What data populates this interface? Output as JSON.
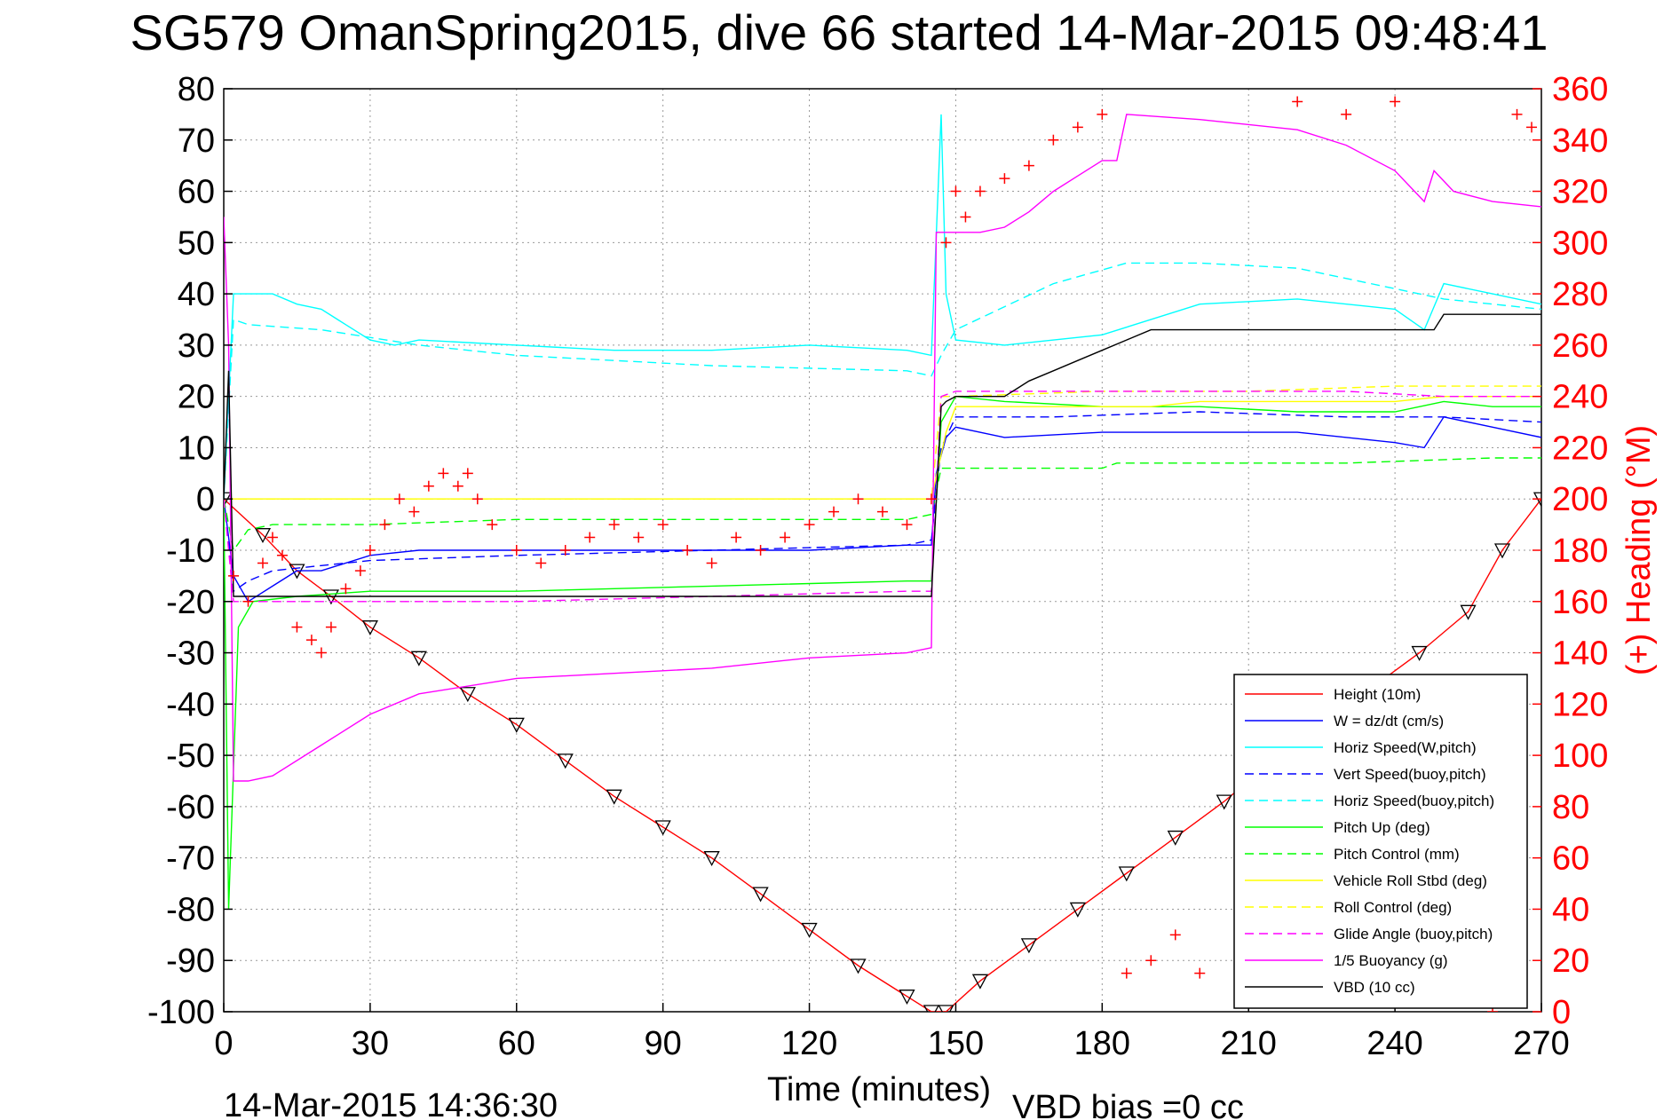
{
  "title": "SG579 OmanSpring2015, dive 66 started 14-Mar-2015 09:48:41",
  "footer_date": "14-Mar-2015 14:36:30",
  "footer_vbd": "VBD bias =0 cc",
  "colors": {
    "height": "#ff0000",
    "w": "#0000ff",
    "horiz_w": "#00ffff",
    "vert_buoy": "#0000ff",
    "horiz_buoy": "#00ffff",
    "pitch": "#00ff00",
    "pitch_ctrl": "#00ff00",
    "roll": "#ffff00",
    "roll_ctrl": "#ffff00",
    "glide": "#ff00ff",
    "buoy": "#ff00ff",
    "vbd": "#000000",
    "heading": "#ff0000",
    "grid": "#999999"
  },
  "chart_data": {
    "type": "line",
    "title": "SG579 OmanSpring2015, dive 66 started 14-Mar-2015 09:48:41",
    "xlabel": "Time (minutes)",
    "ylabel_right": "(+) Heading (°M)",
    "xlim": [
      0,
      270
    ],
    "ylim": [
      -100,
      80
    ],
    "y2lim": [
      0,
      360
    ],
    "xticks": [
      0,
      30,
      60,
      90,
      120,
      150,
      180,
      210,
      240,
      270
    ],
    "yticks": [
      80,
      70,
      60,
      50,
      40,
      30,
      20,
      10,
      0,
      -10,
      -20,
      -30,
      -40,
      -50,
      -60,
      -70,
      -80,
      -90,
      -100
    ],
    "y2ticks": [
      360,
      340,
      320,
      300,
      280,
      260,
      240,
      220,
      200,
      180,
      160,
      140,
      120,
      100,
      80,
      60,
      40,
      20,
      0
    ],
    "grid": true,
    "legend_position": "bottom-right",
    "series": [
      {
        "key": "height",
        "name": "Height (10m)",
        "style": "solid",
        "marker": "triangle",
        "x": [
          0,
          8,
          15,
          22,
          30,
          40,
          50,
          60,
          70,
          80,
          90,
          100,
          110,
          120,
          130,
          140,
          145,
          148,
          155,
          165,
          175,
          185,
          195,
          205,
          215,
          225,
          235,
          245,
          255,
          262,
          270
        ],
        "y": [
          0,
          -7,
          -14,
          -19,
          -25,
          -31,
          -38,
          -44,
          -51,
          -58,
          -64,
          -70,
          -77,
          -84,
          -91,
          -97,
          -100,
          -100,
          -94,
          -87,
          -80,
          -73,
          -66,
          -59,
          -51,
          -44,
          -37,
          -30,
          -22,
          -10,
          0
        ]
      },
      {
        "key": "w",
        "name": "W = dz/dt (cm/s)",
        "style": "solid",
        "x": [
          0,
          2,
          5,
          10,
          15,
          20,
          30,
          40,
          60,
          80,
          100,
          120,
          140,
          145,
          146,
          148,
          150,
          160,
          180,
          200,
          220,
          240,
          246,
          250,
          260,
          270
        ],
        "y": [
          0,
          -15,
          -20,
          -17,
          -14,
          -14,
          -11,
          -10,
          -10,
          -10,
          -10,
          -10,
          -9,
          -9,
          5,
          12,
          14,
          12,
          13,
          13,
          13,
          11,
          10,
          16,
          14,
          12
        ]
      },
      {
        "key": "horiz_w",
        "name": "Horiz Speed(W,pitch)",
        "style": "solid",
        "x": [
          0,
          2,
          5,
          10,
          15,
          20,
          25,
          30,
          35,
          40,
          60,
          80,
          100,
          120,
          140,
          145,
          147,
          148,
          150,
          160,
          180,
          200,
          220,
          240,
          246,
          250,
          260,
          270
        ],
        "y": [
          0,
          40,
          40,
          40,
          38,
          37,
          34,
          31,
          30,
          31,
          30,
          29,
          29,
          30,
          29,
          28,
          75,
          40,
          31,
          30,
          32,
          38,
          39,
          37,
          33,
          42,
          40,
          38
        ]
      },
      {
        "key": "vert_buoy",
        "name": "Vert Speed(buoy,pitch)",
        "style": "dashed",
        "x": [
          0,
          2,
          5,
          10,
          20,
          30,
          60,
          100,
          140,
          145,
          147,
          150,
          170,
          200,
          230,
          250,
          270
        ],
        "y": [
          0,
          -18,
          -16,
          -14,
          -13,
          -12,
          -11,
          -10,
          -9,
          -8,
          10,
          16,
          16,
          17,
          16,
          16,
          15
        ]
      },
      {
        "key": "horiz_buoy",
        "name": "Horiz Speed(buoy,pitch)",
        "style": "dashed",
        "x": [
          0,
          2,
          5,
          20,
          40,
          60,
          100,
          140,
          145,
          147,
          150,
          170,
          185,
          200,
          220,
          240,
          250,
          260,
          270
        ],
        "y": [
          0,
          35,
          34,
          33,
          30,
          28,
          26,
          25,
          24,
          28,
          33,
          42,
          46,
          46,
          45,
          41,
          39,
          38,
          37
        ]
      },
      {
        "key": "pitch",
        "name": "Pitch Up (deg)",
        "style": "solid",
        "x": [
          0,
          1,
          3,
          6,
          15,
          30,
          60,
          100,
          140,
          145,
          147,
          150,
          160,
          180,
          200,
          220,
          240,
          250,
          260,
          270
        ],
        "y": [
          0,
          -80,
          -25,
          -20,
          -19,
          -18,
          -18,
          -17,
          -16,
          -16,
          15,
          20,
          19,
          18,
          18,
          17,
          17,
          19,
          18,
          18
        ]
      },
      {
        "key": "pitch_ctrl",
        "name": "Pitch Control (mm)",
        "style": "dashed",
        "x": [
          0,
          2,
          5,
          10,
          30,
          60,
          100,
          140,
          145,
          147,
          150,
          160,
          180,
          183,
          200,
          230,
          260,
          270
        ],
        "y": [
          0,
          -10,
          -6,
          -5,
          -5,
          -4,
          -4,
          -4,
          -3,
          6,
          6,
          6,
          6,
          7,
          7,
          7,
          8,
          8
        ]
      },
      {
        "key": "roll",
        "name": "Vehicle Roll Stbd (deg)",
        "style": "solid",
        "x": [
          0,
          10,
          20,
          30,
          40,
          50,
          60,
          70,
          80,
          90,
          100,
          110,
          120,
          130,
          140,
          145,
          148,
          150,
          160,
          170,
          180,
          190,
          200,
          210,
          220,
          230,
          240,
          250,
          260,
          270
        ],
        "y": [
          0,
          0,
          0,
          0,
          0,
          0,
          0,
          0,
          0,
          0,
          0,
          0,
          0,
          0,
          0,
          0,
          13,
          18,
          18,
          18,
          18,
          18,
          19,
          19,
          19,
          19,
          19,
          20,
          20,
          20
        ]
      },
      {
        "key": "roll_ctrl",
        "name": "Roll Control (deg)",
        "style": "dashed",
        "x": [
          0,
          20,
          40,
          60,
          80,
          100,
          120,
          140,
          145,
          147,
          150,
          180,
          210,
          240,
          270
        ],
        "y": [
          0,
          0,
          0,
          0,
          0,
          0,
          0,
          0,
          0,
          20,
          20,
          21,
          21,
          22,
          22
        ]
      },
      {
        "key": "glide",
        "name": "Glide Angle (buoy,pitch)",
        "style": "dashed",
        "x": [
          0,
          2,
          6,
          15,
          30,
          60,
          100,
          140,
          145,
          147,
          150,
          170,
          200,
          230,
          250,
          270
        ],
        "y": [
          0,
          -20,
          -20,
          -20,
          -20,
          -20,
          -19,
          -18,
          -18,
          20,
          21,
          21,
          21,
          21,
          20,
          20
        ]
      },
      {
        "key": "buoy",
        "name": "1/5 Buoyancy (g)",
        "style": "solid",
        "x": [
          0,
          1,
          2,
          5,
          10,
          20,
          30,
          40,
          60,
          80,
          100,
          120,
          140,
          145,
          146,
          150,
          155,
          160,
          165,
          170,
          175,
          180,
          183,
          185,
          200,
          220,
          230,
          240,
          246,
          248,
          252,
          260,
          270
        ],
        "y": [
          55,
          30,
          -55,
          -55,
          -54,
          -48,
          -42,
          -38,
          -35,
          -34,
          -33,
          -31,
          -30,
          -29,
          52,
          52,
          52,
          53,
          56,
          60,
          63,
          66,
          66,
          75,
          74,
          72,
          69,
          64,
          58,
          64,
          60,
          58,
          57
        ]
      },
      {
        "key": "vbd",
        "name": "VBD (10 cc)",
        "style": "solid",
        "x": [
          0,
          1,
          2,
          20,
          60,
          100,
          140,
          145,
          147,
          148,
          150,
          160,
          165,
          170,
          175,
          180,
          185,
          190,
          200,
          220,
          240,
          248,
          250,
          260,
          270
        ],
        "y": [
          0,
          25,
          -19,
          -19,
          -19,
          -19,
          -19,
          -19,
          18,
          19,
          20,
          20,
          23,
          25,
          27,
          29,
          31,
          33,
          33,
          33,
          33,
          33,
          36,
          36,
          36
        ]
      },
      {
        "key": "heading",
        "name": "(+) Heading (°M)",
        "style": "markers",
        "axis": "right",
        "x": [
          2,
          5,
          8,
          10,
          12,
          15,
          18,
          20,
          22,
          25,
          28,
          30,
          33,
          36,
          39,
          42,
          45,
          48,
          50,
          52,
          55,
          60,
          65,
          70,
          75,
          80,
          85,
          90,
          95,
          100,
          105,
          110,
          115,
          120,
          125,
          130,
          135,
          140,
          145,
          148,
          150,
          152,
          155,
          160,
          165,
          170,
          175,
          180,
          185,
          190,
          195,
          200,
          210,
          220,
          230,
          240,
          250,
          260,
          265,
          268
        ],
        "y": [
          170,
          160,
          175,
          185,
          178,
          150,
          145,
          140,
          150,
          165,
          172,
          180,
          190,
          200,
          195,
          205,
          210,
          205,
          210,
          200,
          190,
          180,
          175,
          180,
          185,
          190,
          185,
          190,
          180,
          175,
          185,
          180,
          185,
          190,
          195,
          200,
          195,
          190,
          200,
          300,
          320,
          310,
          320,
          325,
          330,
          340,
          345,
          350,
          15,
          20,
          30,
          15,
          10,
          355,
          350,
          355,
          5,
          0,
          350,
          345
        ]
      }
    ]
  }
}
